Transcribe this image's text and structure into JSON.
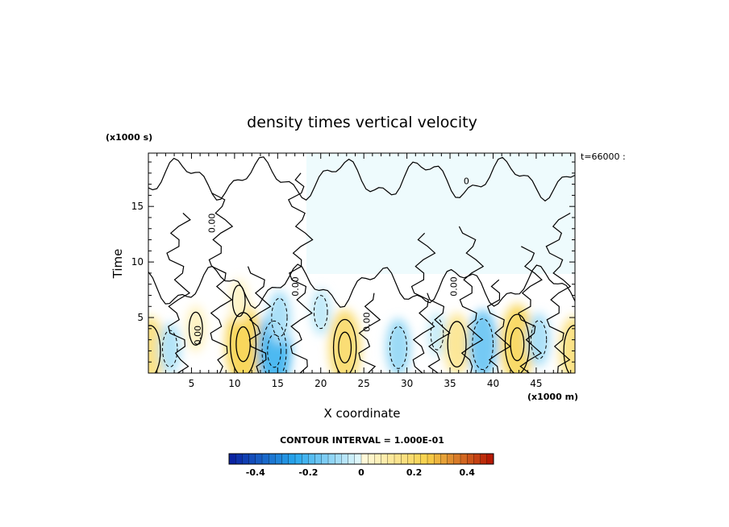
{
  "chart_data": {
    "type": "heatmap",
    "title": "density times vertical velocity",
    "xlabel": "X coordinate",
    "ylabel": "Time",
    "x_unit": "(x1000 m)",
    "y_unit": "(x1000 s)",
    "time_label": "t=66000 :",
    "xlim": [
      0,
      49.5
    ],
    "ylim": [
      0,
      19.8
    ],
    "x_ticks": [
      5,
      10,
      15,
      20,
      25,
      30,
      35,
      40,
      45
    ],
    "y_ticks": [
      5,
      10,
      15
    ],
    "contour_interval_label": "CONTOUR INTERVAL = 1.000E-01",
    "contour_labels": [
      {
        "text": "0.00",
        "x": 6.1,
        "y": 3.4
      },
      {
        "text": "0.00",
        "x": 7.7,
        "y": 13.5
      },
      {
        "text": "0.00",
        "x": 17.4,
        "y": 7.8
      },
      {
        "text": "0.00",
        "x": 25.7,
        "y": 4.6
      },
      {
        "text": "0.00",
        "x": 35.8,
        "y": 7.8
      },
      {
        "text": "0",
        "x": 36.9,
        "y": 17.0
      }
    ],
    "features": [
      {
        "x": 0.2,
        "y": 2.0,
        "value": 0.15
      },
      {
        "x": 2.5,
        "y": 2.2,
        "value": -0.07
      },
      {
        "x": 5.5,
        "y": 4.0,
        "value": 0.05
      },
      {
        "x": 11.0,
        "y": 2.6,
        "value": 0.22
      },
      {
        "x": 10.5,
        "y": 6.5,
        "value": 0.04
      },
      {
        "x": 14.6,
        "y": 2.0,
        "value": -0.2
      },
      {
        "x": 15.2,
        "y": 5.0,
        "value": -0.08
      },
      {
        "x": 20.0,
        "y": 5.5,
        "value": -0.05
      },
      {
        "x": 22.8,
        "y": 2.3,
        "value": 0.18
      },
      {
        "x": 29.0,
        "y": 2.3,
        "value": -0.1
      },
      {
        "x": 33.5,
        "y": 3.5,
        "value": -0.04
      },
      {
        "x": 35.8,
        "y": 2.6,
        "value": 0.12
      },
      {
        "x": 38.8,
        "y": 2.6,
        "value": -0.15
      },
      {
        "x": 42.8,
        "y": 2.6,
        "value": 0.2
      },
      {
        "x": 45.3,
        "y": 3.0,
        "value": -0.08
      },
      {
        "x": 49.4,
        "y": 2.0,
        "value": 0.15
      }
    ],
    "colorbar": {
      "min": -0.5,
      "max": 0.5,
      "tick_values": [
        -0.4,
        -0.2,
        0,
        0.2,
        0.4
      ],
      "tick_labels": [
        "-0.4",
        "-0.2",
        "0",
        "0.2",
        "0.4"
      ]
    },
    "colors": {
      "neg_strong": "#0a1c9e",
      "neg_mid": "#27a8ee",
      "neg_weak": "#e8fbfc",
      "pos_weak": "#fffbe0",
      "pos_mid": "#f8d24a",
      "pos_strong": "#b31000"
    }
  }
}
